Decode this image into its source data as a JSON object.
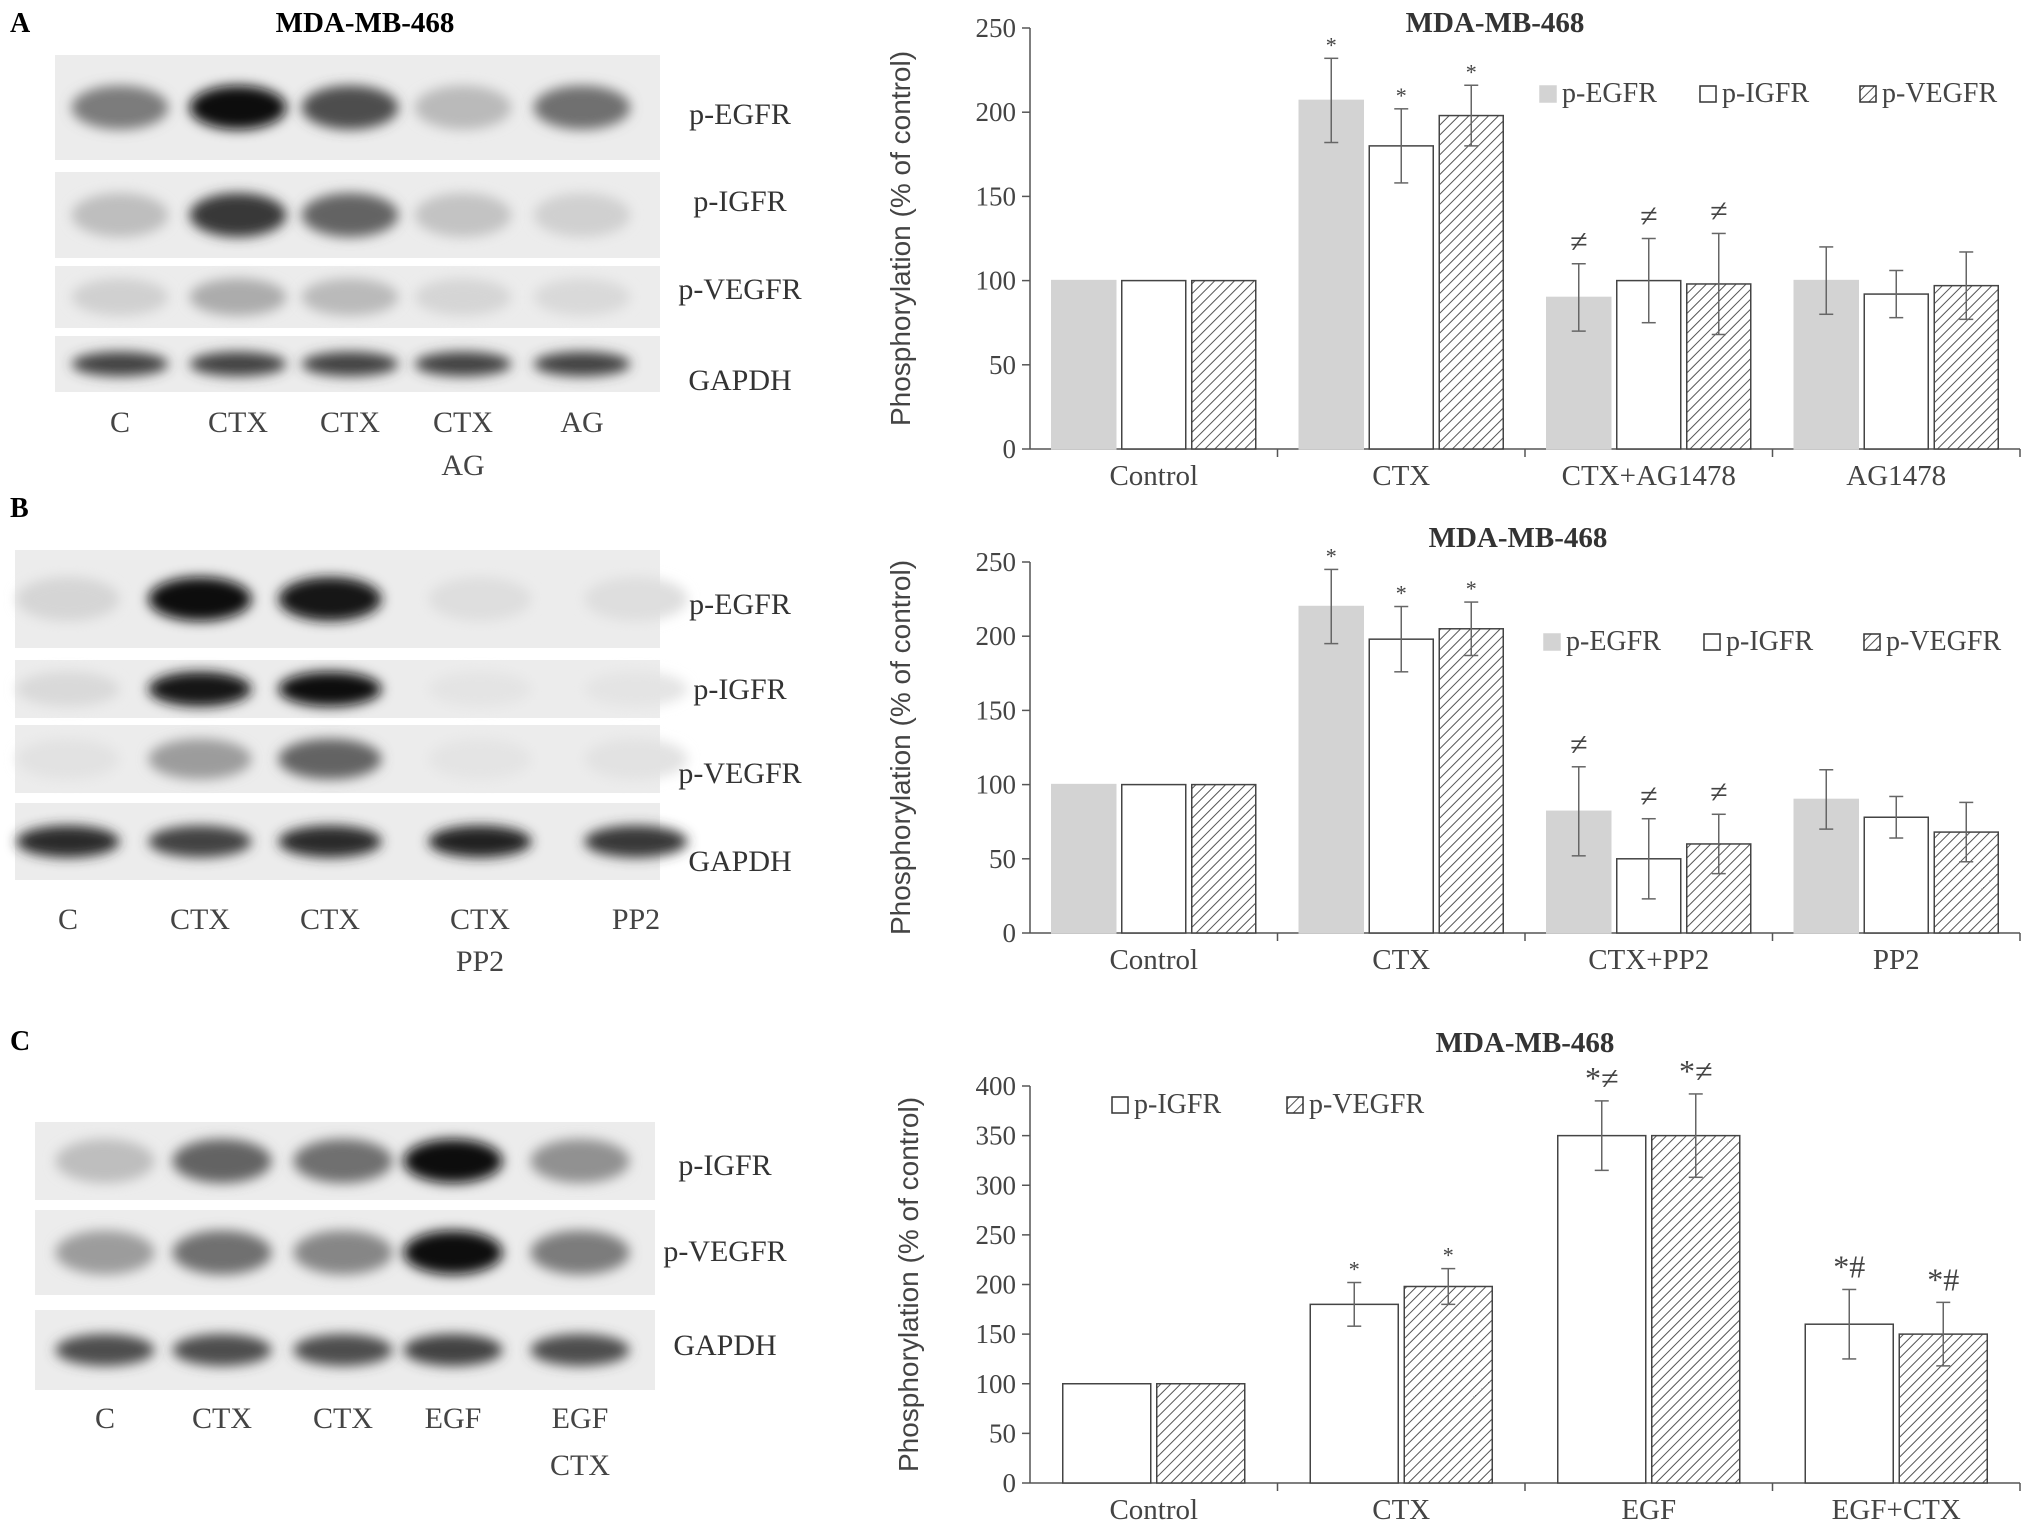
{
  "panels": [
    {
      "letter": "A",
      "blot": {
        "title": "MDA-MB-468",
        "rows": [
          {
            "label": "p-EGFR",
            "intensity": [
              0.5,
              1.0,
              0.7,
              0.22,
              0.55
            ]
          },
          {
            "label": "p-IGFR",
            "intensity": [
              0.2,
              0.8,
              0.6,
              0.18,
              0.12
            ]
          },
          {
            "label": "p-VEGFR",
            "intensity": [
              0.12,
              0.28,
              0.22,
              0.1,
              0.08
            ]
          },
          {
            "label": "GAPDH",
            "intensity": [
              0.75,
              0.75,
              0.75,
              0.75,
              0.75
            ]
          }
        ],
        "lanes": [
          {
            "line1": "C",
            "line2": ""
          },
          {
            "line1": "CTX",
            "line2": ""
          },
          {
            "line1": "CTX",
            "line2": ""
          },
          {
            "line1": "CTX",
            "line2": "AG"
          },
          {
            "line1": "AG",
            "line2": ""
          }
        ]
      }
    },
    {
      "letter": "B",
      "blot": {
        "title": "",
        "rows": [
          {
            "label": "p-EGFR",
            "intensity": [
              0.1,
              1.0,
              0.95,
              0.06,
              0.06
            ]
          },
          {
            "label": "p-IGFR",
            "intensity": [
              0.08,
              0.95,
              1.0,
              0.03,
              0.03
            ]
          },
          {
            "label": "p-VEGFR",
            "intensity": [
              0.04,
              0.35,
              0.6,
              0.03,
              0.04
            ]
          },
          {
            "label": "GAPDH",
            "intensity": [
              0.85,
              0.75,
              0.85,
              0.9,
              0.8
            ]
          }
        ],
        "lanes": [
          {
            "line1": "C",
            "line2": ""
          },
          {
            "line1": "CTX",
            "line2": ""
          },
          {
            "line1": "CTX",
            "line2": ""
          },
          {
            "line1": "CTX",
            "line2": "PP2"
          },
          {
            "line1": "PP2",
            "line2": ""
          }
        ]
      }
    },
    {
      "letter": "C",
      "blot": {
        "title": "",
        "rows": [
          {
            "label": "p-IGFR",
            "intensity": [
              0.2,
              0.6,
              0.55,
              1.0,
              0.4
            ]
          },
          {
            "label": "p-VEGFR",
            "intensity": [
              0.35,
              0.55,
              0.45,
              1.0,
              0.5
            ]
          },
          {
            "label": "GAPDH",
            "intensity": [
              0.7,
              0.7,
              0.7,
              0.75,
              0.7
            ]
          }
        ],
        "lanes": [
          {
            "line1": "C",
            "line2": ""
          },
          {
            "line1": "CTX",
            "line2": ""
          },
          {
            "line1": "CTX",
            "line2": ""
          },
          {
            "line1": "EGF",
            "line2": ""
          },
          {
            "line1": "EGF",
            "line2": "CTX"
          }
        ]
      }
    }
  ],
  "chart_data": [
    {
      "type": "bar",
      "title": "MDA-MB-468",
      "ylabel": "Phosphorylation  (% of control)",
      "xlabel": "",
      "ylim": [
        0,
        250
      ],
      "yticks": [
        0,
        50,
        100,
        150,
        200,
        250
      ],
      "categories": [
        "Control",
        "CTX",
        "CTX+AG1478",
        "AG1478"
      ],
      "legend_position": "top-right",
      "series": [
        {
          "name": "p-EGFR",
          "pattern": "gray",
          "values": [
            100,
            207,
            90,
            100
          ],
          "errors": [
            0,
            25,
            20,
            20
          ],
          "marks": [
            "",
            "*",
            "≠",
            ""
          ]
        },
        {
          "name": "p-IGFR",
          "pattern": "white",
          "values": [
            100,
            180,
            100,
            92
          ],
          "errors": [
            0,
            22,
            25,
            14
          ],
          "marks": [
            "",
            "*",
            "≠",
            ""
          ]
        },
        {
          "name": "p-VEGFR",
          "pattern": "hatch",
          "values": [
            100,
            198,
            98,
            97
          ],
          "errors": [
            0,
            18,
            30,
            20
          ],
          "marks": [
            "",
            "*",
            "≠",
            ""
          ]
        }
      ]
    },
    {
      "type": "bar",
      "title": "MDA-MB-468",
      "ylabel": "Phosphorylation  (% of control)",
      "xlabel": "",
      "ylim": [
        0,
        250
      ],
      "yticks": [
        0,
        50,
        100,
        150,
        200,
        250
      ],
      "categories": [
        "Control",
        "CTX",
        "CTX+PP2",
        "PP2"
      ],
      "legend_position": "top-right",
      "series": [
        {
          "name": "p-EGFR",
          "pattern": "gray",
          "values": [
            100,
            220,
            82,
            90
          ],
          "errors": [
            0,
            25,
            30,
            20
          ],
          "marks": [
            "",
            "*",
            "≠",
            ""
          ]
        },
        {
          "name": "p-IGFR",
          "pattern": "white",
          "values": [
            100,
            198,
            50,
            78
          ],
          "errors": [
            0,
            22,
            27,
            14
          ],
          "marks": [
            "",
            "*",
            "≠",
            ""
          ]
        },
        {
          "name": "p-VEGFR",
          "pattern": "hatch",
          "values": [
            100,
            205,
            60,
            68
          ],
          "errors": [
            0,
            18,
            20,
            20
          ],
          "marks": [
            "",
            "*",
            "≠",
            ""
          ]
        }
      ]
    },
    {
      "type": "bar",
      "title": "MDA-MB-468",
      "ylabel": "Phosphorylation  (% of control)",
      "xlabel": "",
      "ylim": [
        0,
        400
      ],
      "yticks": [
        0,
        50,
        100,
        150,
        200,
        250,
        300,
        350,
        400
      ],
      "categories": [
        "Control",
        "CTX",
        "EGF",
        "EGF+CTX"
      ],
      "legend_position": "top-left",
      "series": [
        {
          "name": "p-IGFR",
          "pattern": "white",
          "values": [
            100,
            180,
            350,
            160
          ],
          "errors": [
            0,
            22,
            35,
            35
          ],
          "marks": [
            "",
            "*",
            "*≠",
            "*#"
          ]
        },
        {
          "name": "p-VEGFR",
          "pattern": "hatch",
          "values": [
            100,
            198,
            350,
            150
          ],
          "errors": [
            0,
            18,
            42,
            32
          ],
          "marks": [
            "",
            "*",
            "*≠",
            "*#"
          ]
        }
      ]
    }
  ]
}
